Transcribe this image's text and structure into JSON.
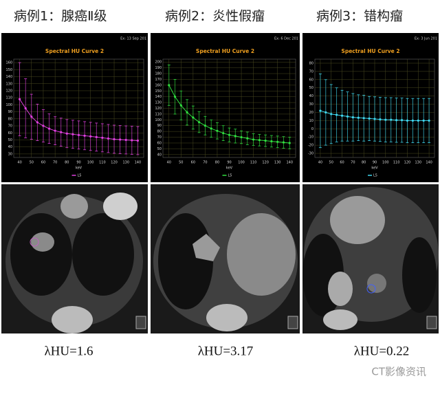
{
  "headers": [
    "病例1：腺癌Ⅱ级",
    "病例2：炎性假瘤",
    "病例3：错构瘤"
  ],
  "captions": [
    "λHU=1.6",
    "λHU=3.17",
    "λHU=0.22"
  ],
  "watermark": "CT影像资讯",
  "chart_data": [
    {
      "type": "line",
      "title": "Spectral HU Curve 2",
      "date": "Ex: 13 Sep 201",
      "x_label": "keV",
      "x": [
        40,
        45,
        50,
        55,
        60,
        65,
        70,
        75,
        80,
        85,
        90,
        95,
        100,
        105,
        110,
        115,
        120,
        125,
        130,
        135,
        140
      ],
      "xlim": [
        35,
        145
      ],
      "xticks": [
        40,
        50,
        60,
        70,
        80,
        90,
        100,
        110,
        120,
        130,
        140
      ],
      "ylim": [
        25,
        165
      ],
      "yticks": [
        30,
        40,
        50,
        60,
        70,
        80,
        90,
        100,
        110,
        120,
        130,
        140,
        150,
        160
      ],
      "grid": true,
      "series": [
        {
          "name": "L5",
          "color": "#e040e0",
          "values": [
            108,
            95,
            83,
            75,
            70,
            66,
            63,
            61,
            59,
            58,
            57,
            56,
            55,
            54,
            53,
            52,
            51,
            50.5,
            50,
            49.5,
            49
          ],
          "errors": [
            52,
            42,
            32,
            26,
            23,
            21,
            20,
            20,
            20,
            20,
            20,
            20,
            20,
            20,
            20,
            20,
            20,
            20,
            20,
            20,
            20
          ]
        }
      ]
    },
    {
      "type": "line",
      "title": "Spectral HU Curve 2",
      "date": "Ex: 6 Dec 201",
      "x_label": "keV",
      "x": [
        40,
        45,
        50,
        55,
        60,
        65,
        70,
        75,
        80,
        85,
        90,
        95,
        100,
        105,
        110,
        115,
        120,
        125,
        130,
        135,
        140
      ],
      "xlim": [
        35,
        145
      ],
      "xticks": [
        40,
        50,
        60,
        70,
        80,
        90,
        100,
        110,
        120,
        130,
        140
      ],
      "ylim": [
        35,
        205
      ],
      "yticks": [
        40,
        50,
        60,
        70,
        80,
        90,
        100,
        110,
        120,
        130,
        140,
        150,
        160,
        170,
        180,
        190,
        200
      ],
      "grid": true,
      "series": [
        {
          "name": "L5",
          "color": "#30e040",
          "values": [
            160,
            140,
            125,
            113,
            104,
            96,
            90,
            85,
            81,
            77,
            74,
            72,
            70,
            68,
            66,
            65,
            64,
            63,
            62,
            61,
            60
          ],
          "errors": [
            35,
            30,
            25,
            22,
            20,
            18,
            16,
            15,
            14,
            13,
            12,
            12,
            11,
            11,
            10,
            10,
            10,
            10,
            10,
            10,
            10
          ]
        }
      ]
    },
    {
      "type": "line",
      "title": "Spectral HU Curve 2",
      "date": "Ex: 3 Jun 201",
      "x_label": "keV",
      "x": [
        40,
        45,
        50,
        55,
        60,
        65,
        70,
        75,
        80,
        85,
        90,
        95,
        100,
        105,
        110,
        115,
        120,
        125,
        130,
        135,
        140
      ],
      "xlim": [
        35,
        145
      ],
      "xticks": [
        40,
        50,
        60,
        70,
        80,
        90,
        100,
        110,
        120,
        130,
        140
      ],
      "ylim": [
        -35,
        85
      ],
      "yticks": [
        -30,
        -20,
        -10,
        0,
        10,
        20,
        30,
        40,
        50,
        60,
        70,
        80
      ],
      "grid": true,
      "series": [
        {
          "name": "L5",
          "color": "#40d8f0",
          "values": [
            22,
            20,
            18,
            17,
            16,
            15,
            14,
            13.5,
            13,
            12.5,
            12,
            11.5,
            11,
            11,
            10.5,
            10.5,
            10,
            10,
            10,
            10,
            10
          ],
          "errors": [
            45,
            40,
            36,
            33,
            31,
            30,
            29,
            28,
            28,
            27,
            27,
            27,
            27,
            27,
            27,
            27,
            27,
            27,
            27,
            27,
            27
          ]
        }
      ]
    }
  ]
}
